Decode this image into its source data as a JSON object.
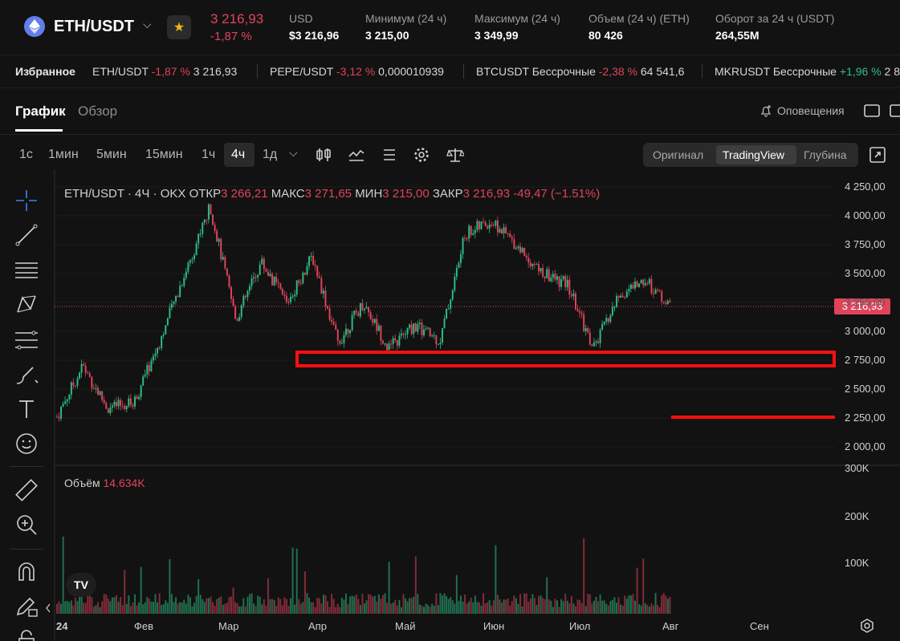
{
  "header": {
    "pair": "ETH/USDT",
    "last_price": "3 216,93",
    "change": "-1,87 %",
    "stats": [
      {
        "label": "USD",
        "value": "$3 216,96"
      },
      {
        "label": "Минимум (24 ч)",
        "value": "3 215,00"
      },
      {
        "label": "Максимум (24 ч)",
        "value": "3 349,99"
      },
      {
        "label": "Объем (24 ч) (ETH)",
        "value": "80 426"
      },
      {
        "label": "Оборот за 24 ч (USDT)",
        "value": "264,55M"
      }
    ]
  },
  "favorites": {
    "title": "Избранное",
    "items": [
      {
        "name": "ETH/USDT",
        "change": "-1,87 %",
        "price": "3 216,93",
        "dir": "neg"
      },
      {
        "name": "PEPE/USDT",
        "change": "-3,12 %",
        "price": "0,000010939",
        "dir": "neg"
      },
      {
        "name": "BTCUSDT Бессрочные",
        "change": "-2,38 %",
        "price": "64 541,6",
        "dir": "neg"
      },
      {
        "name": "MKRUSDT Бессрочные",
        "change": "+1,96 %",
        "price": "2 8",
        "dir": "pos"
      }
    ]
  },
  "tabs": {
    "chart": "График",
    "overview": "Обзор",
    "alerts": "Оповещения"
  },
  "toolbar": {
    "timeframes": [
      "1с",
      "1мин",
      "5мин",
      "15мин",
      "1ч",
      "4ч",
      "1д"
    ],
    "active_timeframe": "4ч",
    "views": [
      "Оригинал",
      "TradingView",
      "Глубина"
    ],
    "active_view": "TradingView"
  },
  "legend": {
    "symbol": "ETH/USDT · 4Ч · OKX",
    "open_label": "ОТКР",
    "open": "3 266,21",
    "high_label": "МАКС",
    "high": "3 271,65",
    "low_label": "МИН",
    "low": "3 215,00",
    "close_label": "ЗАКР",
    "close": "3 216,93",
    "delta": "-49,47 (−1.51%)"
  },
  "volume": {
    "label": "Объём",
    "value": "14.634K"
  },
  "current_price_tag": "3 216,93",
  "colors": {
    "up": "#2ebd85",
    "down": "#e0445a",
    "annotation": "#ff1010",
    "bg": "#121212"
  },
  "chart_data": {
    "type": "candlestick",
    "price_axis": [
      "4 250,00",
      "4 000,00",
      "3 750,00",
      "3 500,00",
      "3 250,00",
      "3 000,00",
      "2 750,00",
      "2 500,00",
      "2 250,00",
      "2 000,00"
    ],
    "volume_axis": [
      "300K",
      "200K",
      "100K"
    ],
    "time_axis": [
      "24",
      "Фев",
      "Мар",
      "Апр",
      "Май",
      "Июн",
      "Июл",
      "Авг",
      "Сен"
    ],
    "ylim": [
      1850,
      4350
    ],
    "approx_price_path": [
      [
        "24",
        2260
      ],
      [
        "24",
        2700
      ],
      [
        "Фев",
        2330
      ],
      [
        "Фев",
        2380
      ],
      [
        "Фев",
        2900
      ],
      [
        "Мар",
        3500
      ],
      [
        "Мар",
        4080
      ],
      [
        "Мар",
        3100
      ],
      [
        "Мар",
        3600
      ],
      [
        "Апр",
        3250
      ],
      [
        "Апр",
        3650
      ],
      [
        "Апр",
        2900
      ],
      [
        "Апр",
        3250
      ],
      [
        "Май",
        2850
      ],
      [
        "Май",
        3050
      ],
      [
        "Май",
        2920
      ],
      [
        "Июн",
        3850
      ],
      [
        "Июн",
        3950
      ],
      [
        "Июн",
        3750
      ],
      [
        "Июн",
        3500
      ],
      [
        "Июл",
        3400
      ],
      [
        "Июл",
        2850
      ],
      [
        "Июл",
        3300
      ],
      [
        "Авг",
        3450
      ],
      [
        "Авг",
        3217
      ]
    ],
    "annotations": [
      {
        "type": "support-box",
        "price_range": [
          2700,
          2800
        ]
      },
      {
        "type": "support-line",
        "price": 2250
      }
    ]
  }
}
